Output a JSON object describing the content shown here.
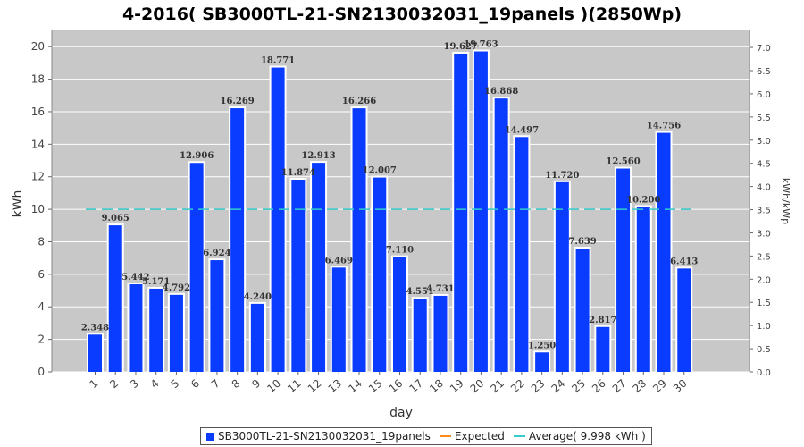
{
  "chart_data": {
    "type": "bar",
    "title": "4-2016( SB3000TL-21-SN2130032031_19panels )(2850Wp)",
    "xlabel": "day",
    "ylabel": "kWh",
    "y2label": "kWh/kWp",
    "categories": [
      "1",
      "2",
      "3",
      "4",
      "5",
      "6",
      "7",
      "8",
      "9",
      "10",
      "11",
      "12",
      "13",
      "14",
      "15",
      "16",
      "17",
      "18",
      "19",
      "20",
      "21",
      "22",
      "23",
      "24",
      "25",
      "26",
      "27",
      "28",
      "29",
      "30"
    ],
    "series": [
      {
        "name": "SB3000TL-21-SN2130032031_19panels",
        "values": [
          2.348,
          9.065,
          5.442,
          5.171,
          4.792,
          12.906,
          6.924,
          16.269,
          4.24,
          18.771,
          11.874,
          12.913,
          6.469,
          16.266,
          12.007,
          7.11,
          4.551,
          4.731,
          19.627,
          19.763,
          16.868,
          14.497,
          1.25,
          11.72,
          7.639,
          2.817,
          12.56,
          10.2,
          14.756,
          6.413
        ],
        "labels": [
          "2.348",
          "9.065",
          "5.442",
          "5.171",
          "4.792",
          "12.906",
          "6.924",
          "16.269",
          "4.240",
          "18.771",
          "11.874",
          "12.913",
          "6.469",
          "16.266",
          "12.007",
          "7.110",
          "4.551",
          "4.731",
          "19.627",
          "19.763",
          "16.868",
          "14.497",
          "1.250",
          "11.720",
          "7.639",
          "2.817",
          "12.560",
          "10.200",
          "14.756",
          "6.413"
        ]
      }
    ],
    "average": 9.998,
    "ylim": [
      0,
      21
    ],
    "yticks": [
      0,
      2,
      4,
      6,
      8,
      10,
      12,
      14,
      16,
      18,
      20
    ],
    "y2lim": [
      0,
      7.368
    ],
    "y2ticks": [
      "0.0",
      "0.5",
      "1.0",
      "1.5",
      "2.0",
      "2.5",
      "3.0",
      "3.5",
      "4.0",
      "4.5",
      "5.0",
      "5.5",
      "6.0",
      "6.5",
      "7.0"
    ],
    "grid": true,
    "legend_position": "bottom",
    "legend": {
      "series_label": "SB3000TL-21-SN2130032031_19panels",
      "expected_label": "Expected",
      "average_label": "Average( 9.998 kWh )"
    },
    "colors": {
      "bar": "#0a3cff",
      "bar_edge": "#ffffff",
      "plot_bg": "#c8c8c8",
      "grid": "#ffffff",
      "average": "#33cccc",
      "expected": "#ff8c1a"
    }
  }
}
